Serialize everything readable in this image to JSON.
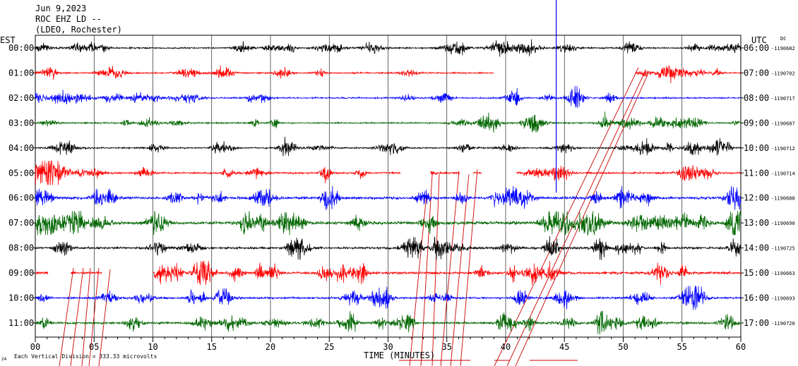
{
  "header": {
    "date": "Jun 9,2023",
    "station": "ROC EHZ LD --",
    "network": "(LDEO, Rochester)"
  },
  "axis": {
    "left_label": "EST",
    "right_label": "UTC",
    "dc_label": "DC",
    "xlabel": "TIME (MINUTES)",
    "xticks": [
      "00",
      "05",
      "10",
      "15",
      "20",
      "25",
      "30",
      "35",
      "40",
      "45",
      "50",
      "55",
      "60"
    ],
    "footer_note": "Each Vertical Division =  333.33 microvolts",
    "corner_mark": "24"
  },
  "colors": {
    "black": "#000000",
    "red": "#ff0000",
    "blue": "#0000ff",
    "green": "#006600",
    "grid": "#000000",
    "event_line": "#cc0000"
  },
  "chart_data": {
    "type": "line",
    "x_range": [
      0,
      60
    ],
    "x_unit": "minutes",
    "grid": true,
    "rows": [
      {
        "est": "00:00",
        "utc": "06:00",
        "dc": "-1190682",
        "color": "black",
        "gaps": []
      },
      {
        "est": "01:00",
        "utc": "07:00",
        "dc": "-1190702",
        "color": "red",
        "gaps": [
          [
            39.0,
            51.0
          ]
        ]
      },
      {
        "est": "02:00",
        "utc": "08:00",
        "dc": "-1190717",
        "color": "blue",
        "gaps": []
      },
      {
        "est": "03:00",
        "utc": "09:00",
        "dc": "-1190687",
        "color": "green",
        "gaps": []
      },
      {
        "est": "04:00",
        "utc": "10:00",
        "dc": "-1190712",
        "color": "black",
        "gaps": []
      },
      {
        "est": "05:00",
        "utc": "11:00",
        "dc": "-1190714",
        "color": "red",
        "gaps": [
          [
            31.1,
            33.6
          ],
          [
            36.1,
            37.2
          ],
          [
            38.0,
            40.9
          ]
        ]
      },
      {
        "est": "06:00",
        "utc": "12:00",
        "dc": "-1190688",
        "color": "blue",
        "gaps": []
      },
      {
        "est": "07:00",
        "utc": "13:00",
        "dc": "-1190690",
        "color": "green",
        "gaps": []
      },
      {
        "est": "08:00",
        "utc": "14:00",
        "dc": "-1190725",
        "color": "black",
        "gaps": []
      },
      {
        "est": "09:00",
        "utc": "15:00",
        "dc": "-1190663",
        "color": "red",
        "gaps": [
          [
            1.1,
            3.0
          ],
          [
            5.7,
            10.0
          ]
        ]
      },
      {
        "est": "10:00",
        "utc": "16:00",
        "dc": "-1190693",
        "color": "blue",
        "gaps": []
      },
      {
        "est": "11:00",
        "utc": "17:00",
        "dc": "-1190720",
        "color": "green",
        "gaps": []
      }
    ],
    "spike": {
      "row_est": "05:00",
      "minute": 44.3
    }
  }
}
